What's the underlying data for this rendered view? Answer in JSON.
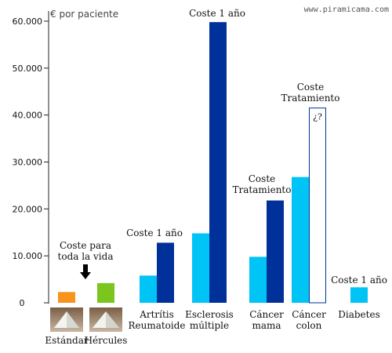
{
  "source": "www.piramicama.com",
  "unit_label": "€ por paciente",
  "chart_data": {
    "type": "bar",
    "title": "",
    "xlabel": "",
    "ylabel": "€ por paciente",
    "ylim": [
      0,
      60000
    ],
    "yticks": [
      "0",
      "10.000",
      "20.000",
      "30.000",
      "40.000",
      "50.000",
      "60.000"
    ],
    "grid": false,
    "categories": [
      {
        "label": "Estándar",
        "lines": [
          "Estándar"
        ],
        "bars": [
          {
            "series": "coste_vida",
            "value": 2300,
            "color": "#f7941d"
          }
        ]
      },
      {
        "label": "Hércules",
        "lines": [
          "Hércules"
        ],
        "bars": [
          {
            "series": "coste_vida",
            "value": 4200,
            "color": "#7ac61c"
          }
        ]
      },
      {
        "label": "Artrítis Reumatoide",
        "lines": [
          "Artrítis",
          "Reumatoide"
        ],
        "bars": [
          {
            "series": "light",
            "value": 5800,
            "color": "#00c4f5"
          },
          {
            "series": "dark",
            "value": 12800,
            "color": "#00319a"
          }
        ]
      },
      {
        "label": "Esclerosis múltiple",
        "lines": [
          "Esclerosis",
          "múltiple"
        ],
        "bars": [
          {
            "series": "light",
            "value": 14800,
            "color": "#00c4f5"
          },
          {
            "series": "dark",
            "value": 59800,
            "color": "#00319a"
          }
        ]
      },
      {
        "label": "Cáncer mama",
        "lines": [
          "Cáncer",
          "mama"
        ],
        "bars": [
          {
            "series": "light",
            "value": 9800,
            "color": "#00c4f5"
          },
          {
            "series": "dark",
            "value": 21800,
            "color": "#00319a"
          }
        ]
      },
      {
        "label": "Cáncer colon",
        "lines": [
          "Cáncer",
          "colon"
        ],
        "bars": [
          {
            "series": "light",
            "value": 26800,
            "color": "#00c4f5"
          },
          {
            "series": "unknown",
            "value": 41500,
            "color": "#ffffff",
            "outline": "#00319a",
            "label": "¿?"
          }
        ]
      },
      {
        "label": "Diabetes",
        "lines": [
          "Diabetes"
        ],
        "bars": [
          {
            "series": "light",
            "value": 3300,
            "color": "#00c4f5"
          }
        ]
      }
    ],
    "annotations": [
      {
        "lines": [
          "Coste para",
          "toda la vida"
        ],
        "arrow": "down",
        "near": "Hércules"
      },
      {
        "lines": [
          "Coste 1 año"
        ],
        "near": "Artrítis Reumatoide"
      },
      {
        "lines": [
          "Coste 1 año"
        ],
        "near": "Esclerosis múltiple"
      },
      {
        "lines": [
          "Coste",
          "Tratamiento"
        ],
        "near": "Cáncer mama"
      },
      {
        "lines": [
          "Coste",
          "Tratamiento"
        ],
        "near": "Cáncer colon"
      },
      {
        "lines": [
          "Coste 1 año"
        ],
        "near": "Diabetes"
      }
    ],
    "images": [
      {
        "name": "pyramid-estandar-photo",
        "under": "Estándar"
      },
      {
        "name": "pyramid-hercules-photo",
        "under": "Hércules"
      }
    ]
  }
}
